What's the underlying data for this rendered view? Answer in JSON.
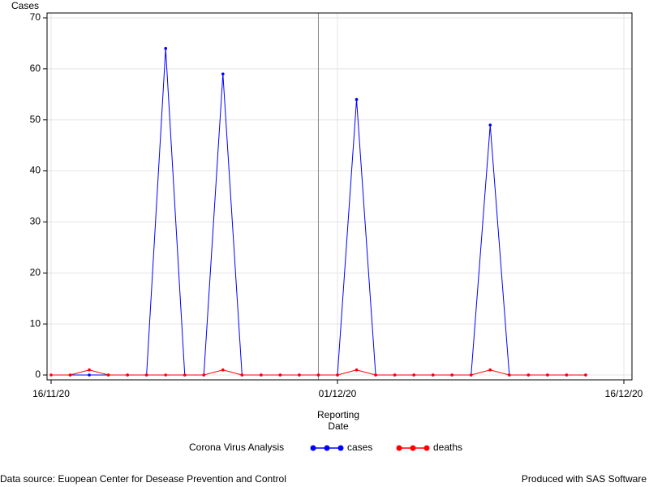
{
  "chart_data": {
    "type": "line",
    "y_label": "Cases",
    "x_label": "Reporting Date",
    "legend_title": "Corona Virus Analysis",
    "x": [
      "2020-11-16",
      "2020-11-17",
      "2020-11-18",
      "2020-11-19",
      "2020-11-20",
      "2020-11-21",
      "2020-11-22",
      "2020-11-23",
      "2020-11-24",
      "2020-11-25",
      "2020-11-26",
      "2020-11-27",
      "2020-11-28",
      "2020-11-29",
      "2020-11-30",
      "2020-12-01",
      "2020-12-02",
      "2020-12-03",
      "2020-12-04",
      "2020-12-05",
      "2020-12-06",
      "2020-12-07",
      "2020-12-08",
      "2020-12-09",
      "2020-12-10",
      "2020-12-11",
      "2020-12-12",
      "2020-12-13",
      "2020-12-14"
    ],
    "series": [
      {
        "name": "cases",
        "color": "#0000ff",
        "values": [
          null,
          0,
          0,
          0,
          0,
          0,
          64,
          0,
          0,
          59,
          0,
          0,
          0,
          0,
          0,
          0,
          54,
          0,
          0,
          0,
          0,
          0,
          0,
          49,
          0,
          0,
          0,
          0,
          0
        ]
      },
      {
        "name": "deaths",
        "color": "#ff0000",
        "values": [
          0,
          0,
          1,
          0,
          0,
          0,
          0,
          0,
          0,
          1,
          0,
          0,
          0,
          0,
          0,
          0,
          1,
          0,
          0,
          0,
          0,
          0,
          0,
          1,
          0,
          0,
          0,
          0,
          0
        ]
      }
    ],
    "xlim": [
      "2020-11-16",
      "2020-12-16"
    ],
    "xticks": [
      {
        "value": "2020-11-16",
        "label": "16/11/20"
      },
      {
        "value": "2020-12-01",
        "label": "01/12/20"
      },
      {
        "value": "2020-12-16",
        "label": "16/12/20"
      }
    ],
    "ylim": [
      0,
      70
    ],
    "yticks": [
      0,
      10,
      20,
      30,
      40,
      50,
      60,
      70
    ],
    "grid": true,
    "reference_line": "2020-11-30",
    "footnote_left": "Data source: Euopean Center for Desease Prevention and Control",
    "footnote_right": "Produced with SAS Software"
  }
}
